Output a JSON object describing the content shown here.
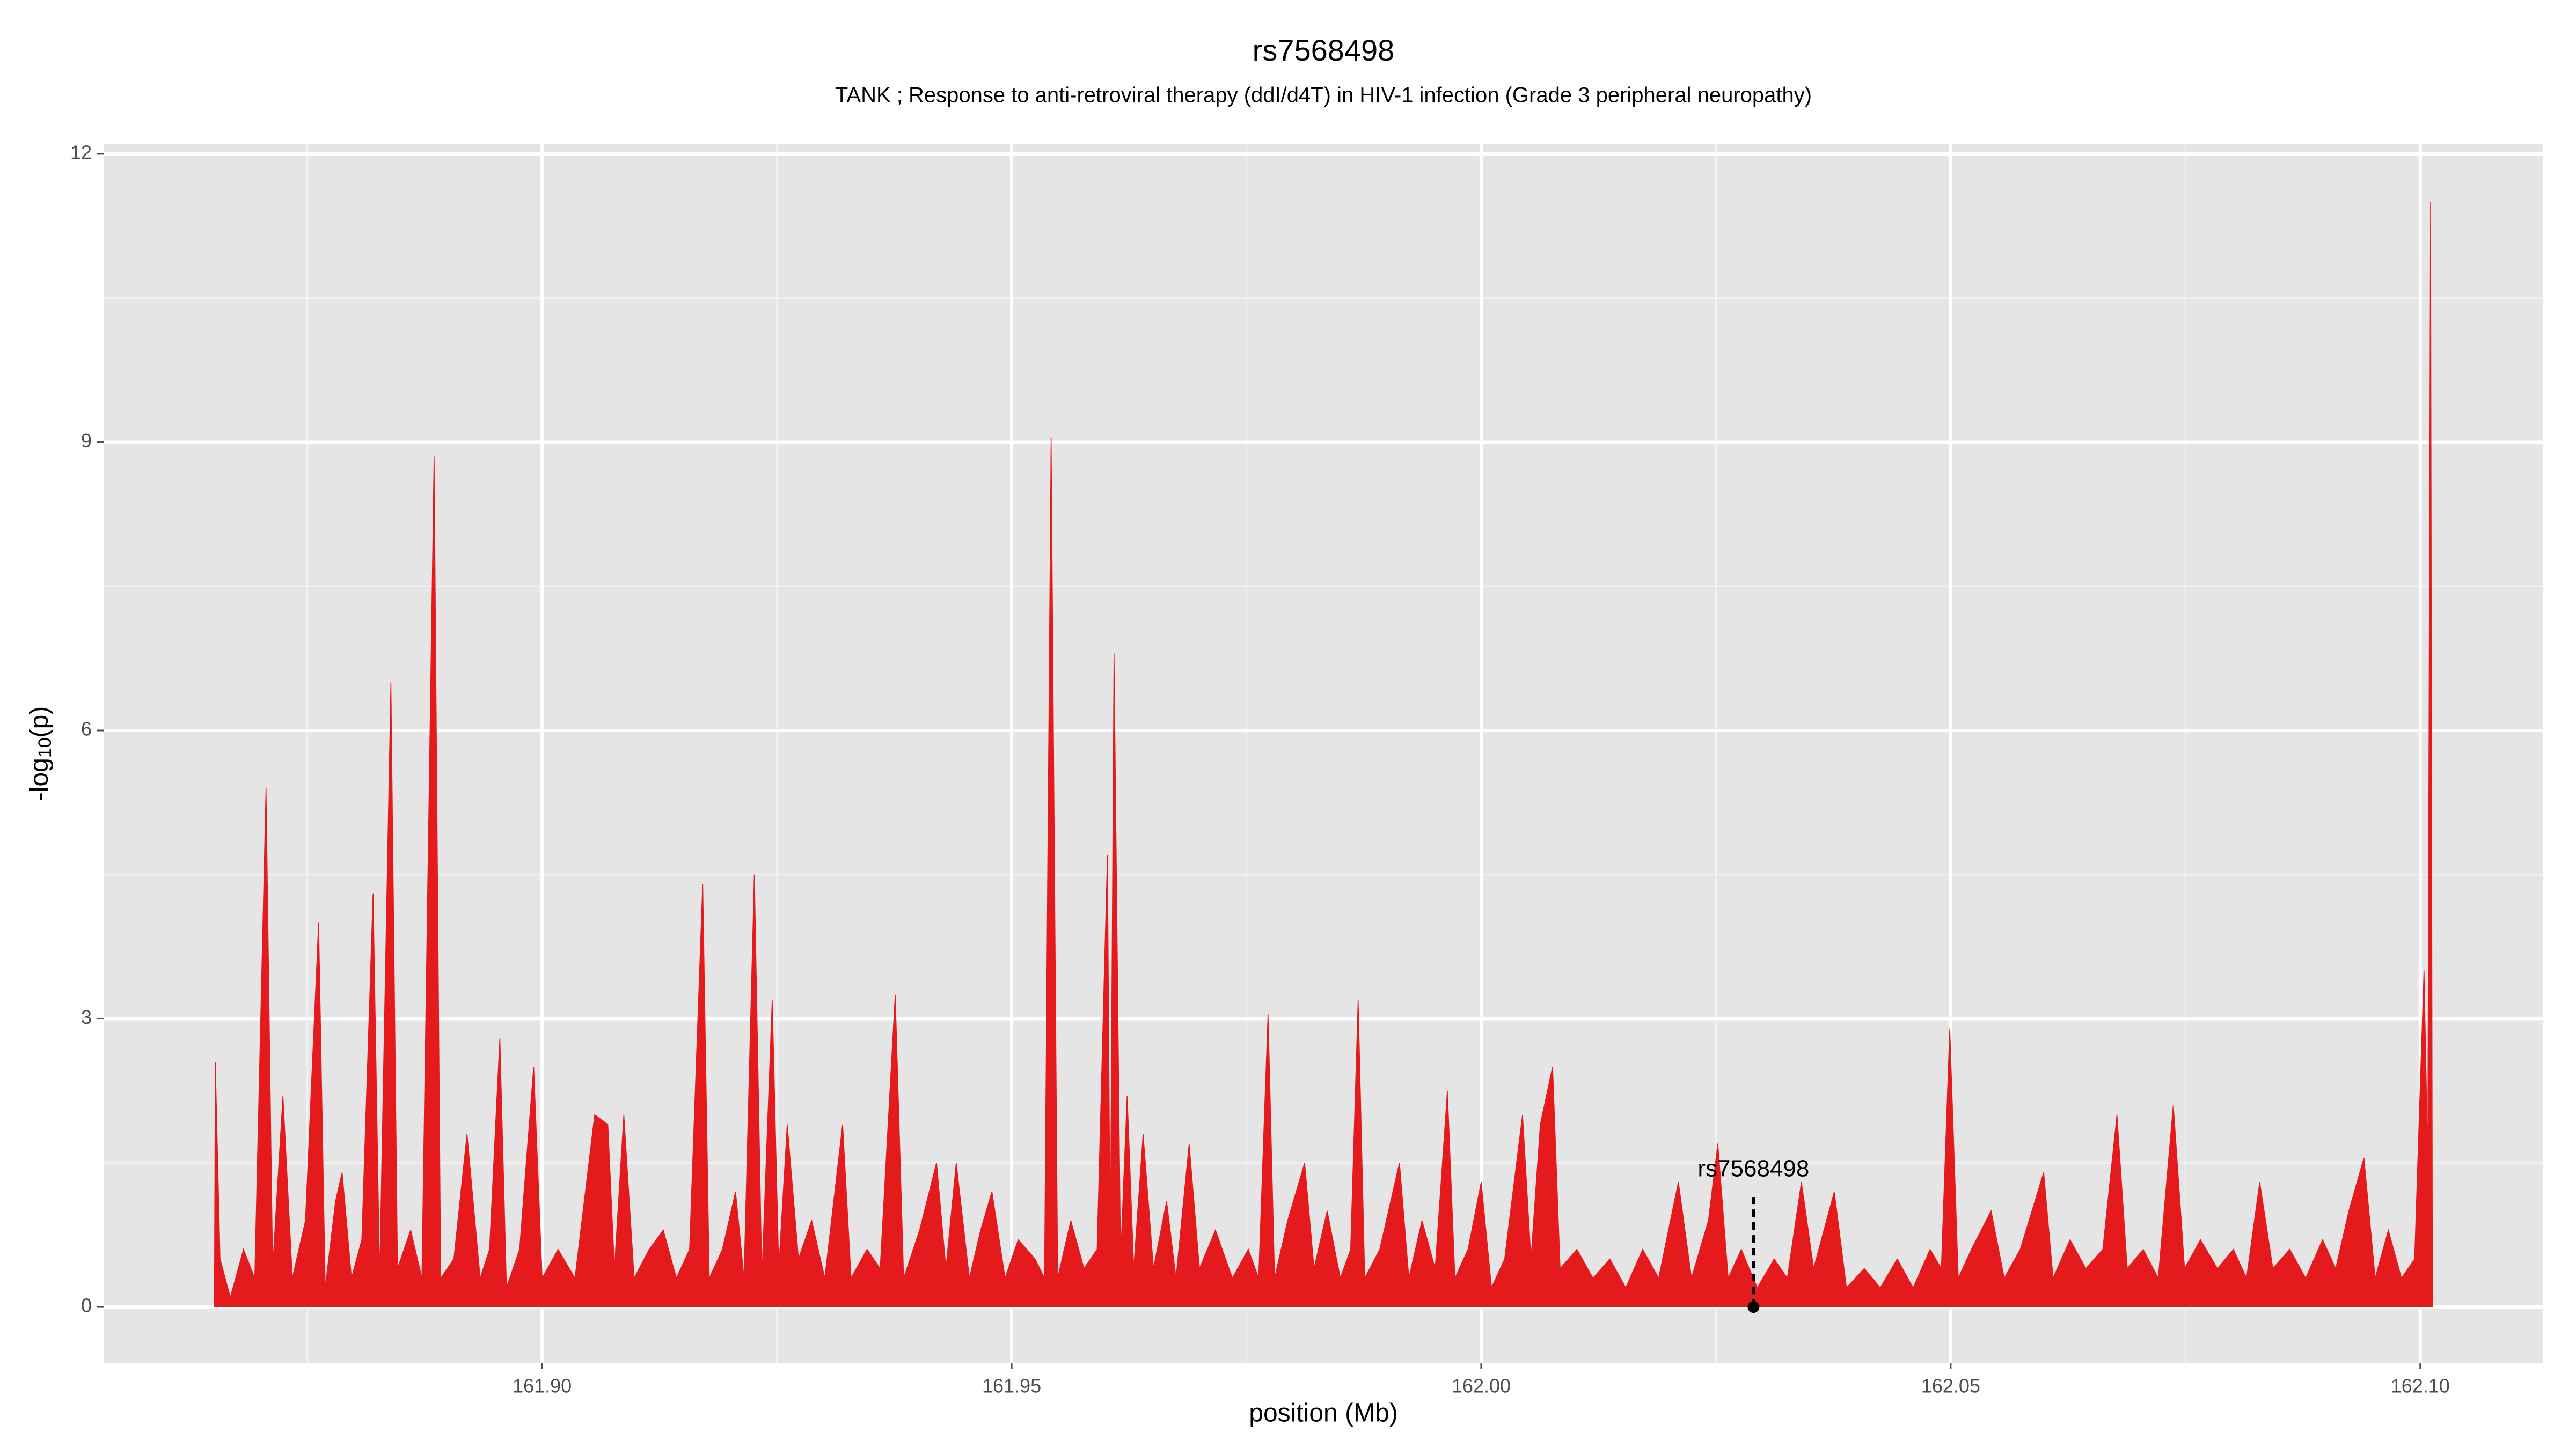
{
  "chart_data": {
    "type": "area",
    "title": "rs7568498",
    "subtitle": "TANK ; Response to anti-retroviral therapy (ddI/d4T) in HIV-1 infection (Grade 3 peripheral neuropathy)",
    "x_label": "position (Mb)",
    "y_label": {
      "main": "-log",
      "sub": "10",
      "after": "(p)"
    },
    "xlim": [
      161.8533,
      162.1131
    ],
    "ylim": [
      -0.58,
      12.1
    ],
    "xticks": [
      {
        "value": 161.9,
        "label": "161.90"
      },
      161.95,
      {
        "value": 162.0,
        "label": "162.00"
      },
      162.05,
      {
        "value": 162.1,
        "label": "162.10"
      }
    ],
    "yticks": [
      0,
      3,
      6,
      9,
      12
    ],
    "x_minor_ticks": [
      161.875,
      161.925,
      161.975,
      162.025,
      162.075
    ],
    "y_minor_ticks": [
      1.5,
      4.5,
      7.5,
      10.5
    ],
    "grid": true,
    "background": "#e5e5e5",
    "annotation": {
      "text": "rs7568498",
      "x": 162.029,
      "y": 0,
      "color": "#000000"
    },
    "series": [
      {
        "color": "#e41a1c",
        "x": [
          161.8651,
          161.8652,
          161.8657,
          161.8668,
          161.8682,
          161.8694,
          161.8706,
          161.8713,
          161.8724,
          161.8734,
          161.8748,
          161.8762,
          161.8769,
          161.878,
          161.8787,
          161.8797,
          161.8808,
          161.882,
          161.8827,
          161.8839,
          161.8846,
          161.886,
          161.8872,
          161.8885,
          161.8892,
          161.8906,
          161.892,
          161.8934,
          161.8944,
          161.8955,
          161.8962,
          161.8976,
          161.8991,
          161.9,
          161.9017,
          161.9035,
          161.9056,
          161.907,
          161.9077,
          161.9087,
          161.9098,
          161.9114,
          161.9129,
          161.9143,
          161.9157,
          161.9171,
          161.9178,
          161.9192,
          161.9206,
          161.9215,
          161.9226,
          161.9234,
          161.9245,
          161.9252,
          161.9261,
          161.9273,
          161.9287,
          161.9301,
          161.932,
          161.9329,
          161.9346,
          161.936,
          161.9376,
          161.9385,
          161.9402,
          161.942,
          161.943,
          161.9441,
          161.9455,
          161.9467,
          161.9479,
          161.9493,
          161.9507,
          161.9525,
          161.9535,
          161.9542,
          161.9549,
          161.9563,
          161.9577,
          161.9591,
          161.9602,
          161.9605,
          161.9609,
          161.9616,
          161.9623,
          161.963,
          161.964,
          161.9651,
          161.9665,
          161.9675,
          161.9689,
          161.97,
          161.9717,
          161.9735,
          161.9752,
          161.9763,
          161.9773,
          161.978,
          161.9794,
          161.9812,
          161.9822,
          161.9836,
          161.985,
          161.9861,
          161.9869,
          161.9876,
          161.9892,
          161.9913,
          161.9923,
          161.9937,
          161.9951,
          161.9964,
          161.9972,
          161.9986,
          162.0,
          162.0011,
          162.0025,
          162.0044,
          162.0053,
          162.0063,
          162.0076,
          162.0084,
          162.0102,
          162.0119,
          162.0137,
          162.0154,
          162.0172,
          162.0189,
          162.021,
          162.0224,
          162.0242,
          162.0252,
          162.0263,
          162.0277,
          162.0294,
          162.0312,
          162.0326,
          162.0341,
          162.0354,
          162.0376,
          162.0389,
          162.0408,
          162.0425,
          162.0443,
          162.046,
          162.0478,
          162.049,
          162.0499,
          162.0508,
          162.0522,
          162.0543,
          162.0557,
          162.0574,
          162.0599,
          162.0609,
          162.0627,
          162.0644,
          162.0662,
          162.0677,
          162.0688,
          162.0705,
          162.0721,
          162.0737,
          162.0749,
          162.0766,
          162.0784,
          162.0801,
          162.0815,
          162.0829,
          162.0843,
          162.0861,
          162.0878,
          162.0896,
          162.091,
          162.0924,
          162.094,
          162.0952,
          162.0966,
          162.098,
          162.0994,
          162.1004,
          162.1008,
          162.1011,
          162.1013
        ],
        "values": [
          0,
          2.55,
          0.5,
          0.1,
          0.6,
          0.3,
          5.4,
          0.4,
          2.2,
          0.3,
          0.9,
          4.0,
          0.2,
          1.1,
          1.4,
          0.3,
          0.7,
          4.3,
          0.3,
          6.5,
          0.4,
          0.8,
          0.3,
          8.85,
          0.3,
          0.5,
          1.8,
          0.3,
          0.6,
          2.8,
          0.2,
          0.6,
          2.5,
          0.3,
          0.6,
          0.3,
          2.0,
          1.9,
          0.4,
          2.0,
          0.3,
          0.6,
          0.8,
          0.3,
          0.6,
          4.4,
          0.3,
          0.6,
          1.2,
          0.3,
          4.5,
          0.3,
          3.2,
          0.4,
          1.9,
          0.5,
          0.9,
          0.3,
          1.9,
          0.3,
          0.6,
          0.4,
          3.25,
          0.3,
          0.8,
          1.5,
          0.4,
          1.5,
          0.3,
          0.8,
          1.2,
          0.3,
          0.7,
          0.5,
          0.3,
          9.05,
          0.3,
          0.9,
          0.4,
          0.6,
          4.7,
          0.5,
          6.8,
          0.5,
          2.2,
          0.4,
          1.8,
          0.4,
          1.1,
          0.3,
          1.7,
          0.4,
          0.8,
          0.3,
          0.6,
          0.3,
          3.05,
          0.3,
          0.9,
          1.5,
          0.4,
          1.0,
          0.3,
          0.6,
          3.2,
          0.3,
          0.6,
          1.5,
          0.3,
          0.9,
          0.4,
          2.25,
          0.3,
          0.6,
          1.3,
          0.2,
          0.5,
          2.0,
          0.5,
          1.9,
          2.5,
          0.4,
          0.6,
          0.3,
          0.5,
          0.2,
          0.6,
          0.3,
          1.3,
          0.3,
          0.9,
          1.7,
          0.3,
          0.6,
          0.2,
          0.5,
          0.3,
          1.3,
          0.4,
          1.2,
          0.2,
          0.4,
          0.2,
          0.5,
          0.2,
          0.6,
          0.4,
          2.9,
          0.3,
          0.6,
          1.0,
          0.3,
          0.6,
          1.4,
          0.3,
          0.7,
          0.4,
          0.6,
          2.0,
          0.4,
          0.6,
          0.3,
          2.1,
          0.4,
          0.7,
          0.4,
          0.6,
          0.3,
          1.3,
          0.4,
          0.6,
          0.3,
          0.7,
          0.4,
          1.0,
          1.55,
          0.3,
          0.8,
          0.3,
          0.5,
          3.5,
          1.5,
          11.5,
          0
        ]
      }
    ]
  }
}
